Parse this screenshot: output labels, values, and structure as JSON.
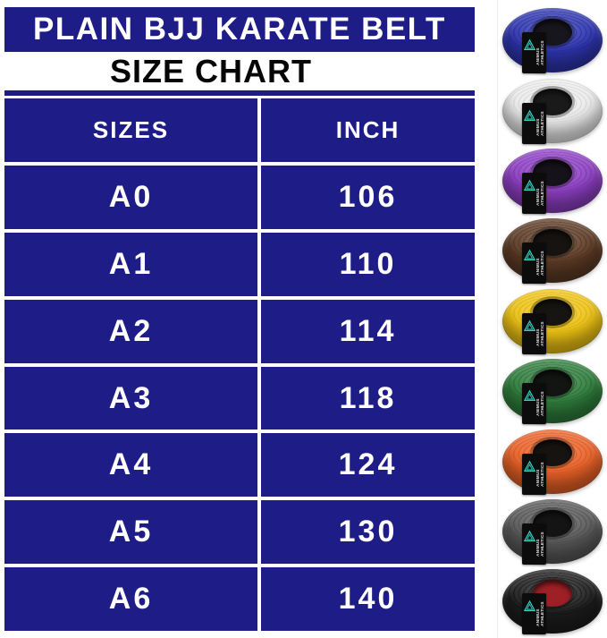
{
  "page": {
    "background": "#ffffff"
  },
  "header": {
    "title": "PLAIN BJJ KARATE BELT",
    "bg": "#1e1c87",
    "text_color": "#ffffff"
  },
  "subtitle": {
    "text": "SIZE CHART",
    "color": "#060606"
  },
  "size_table": {
    "bg": "#1e1c87",
    "text_color": "#ffffff",
    "columns": [
      "SIZES",
      "INCH"
    ],
    "rows": [
      [
        "A0",
        "106"
      ],
      [
        "A1",
        "110"
      ],
      [
        "A2",
        "114"
      ],
      [
        "A3",
        "118"
      ],
      [
        "A4",
        "124"
      ],
      [
        "A5",
        "130"
      ],
      [
        "A6",
        "140"
      ]
    ]
  },
  "belts": {
    "brand": "ANIMUS ATHLETICS",
    "logo": "triangle-icon",
    "logo_color": "#38d2c2",
    "strap_color": "#0c0c0c",
    "items": [
      {
        "name": "blue-belt",
        "color": "#2e35b0",
        "ring": "#1f2590",
        "hole": "#16161c"
      },
      {
        "name": "white-belt",
        "color": "#ececec",
        "ring": "#c8c8c8",
        "hole": "#1a1a1a"
      },
      {
        "name": "purple-belt",
        "color": "#8e3fc4",
        "ring": "#7230a5",
        "hole": "#161219"
      },
      {
        "name": "brown-belt",
        "color": "#5d3b25",
        "ring": "#482e1c",
        "hole": "#171310"
      },
      {
        "name": "yellow-belt",
        "color": "#f0c414",
        "ring": "#cda60e",
        "hole": "#171512"
      },
      {
        "name": "green-belt",
        "color": "#2f7e3c",
        "ring": "#23602e",
        "hole": "#121512"
      },
      {
        "name": "orange-belt",
        "color": "#ec6227",
        "ring": "#c64e1d",
        "hole": "#171311"
      },
      {
        "name": "gray-belt",
        "color": "#595959",
        "ring": "#454545",
        "hole": "#141414"
      },
      {
        "name": "black-belt",
        "color": "#1d1d1d",
        "ring": "#0f0f0f",
        "hole": "#9e2026"
      }
    ]
  },
  "chart_data": {
    "type": "table",
    "title": "PLAIN BJJ KARATE BELT SIZE CHART",
    "columns": [
      "SIZES",
      "INCH"
    ],
    "rows": [
      [
        "A0",
        106
      ],
      [
        "A1",
        110
      ],
      [
        "A2",
        114
      ],
      [
        "A3",
        118
      ],
      [
        "A4",
        124
      ],
      [
        "A5",
        130
      ],
      [
        "A6",
        140
      ]
    ]
  }
}
